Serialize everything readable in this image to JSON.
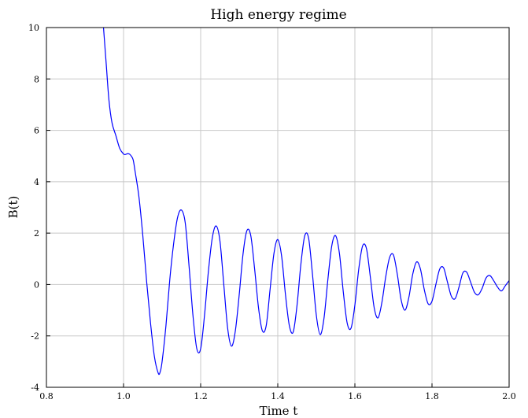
{
  "chart_data": {
    "type": "line",
    "title": "High energy regime",
    "xlabel": "Time t",
    "ylabel": "B(t)",
    "xlim": [
      0.8,
      2.0
    ],
    "ylim": [
      -4,
      10
    ],
    "xticks": [
      "0.8",
      "1.0",
      "1.2",
      "1.4",
      "1.6",
      "1.8",
      "2.0"
    ],
    "yticks": [
      "-4",
      "-2",
      "0",
      "2",
      "4",
      "6",
      "8",
      "10"
    ],
    "grid": true,
    "legend": "none",
    "series": [
      {
        "color": "#0000ff",
        "x": [
          0.948,
          0.955,
          0.962,
          0.97,
          0.98,
          0.99,
          1.0,
          1.005,
          1.01,
          1.015,
          1.02,
          1.025,
          1.03,
          1.04,
          1.05,
          1.06,
          1.07,
          1.08,
          1.09,
          1.095,
          1.1,
          1.11,
          1.12,
          1.13,
          1.14,
          1.15,
          1.16,
          1.17,
          1.18,
          1.19,
          1.2,
          1.21,
          1.22,
          1.23,
          1.24,
          1.25,
          1.26,
          1.27,
          1.28,
          1.29,
          1.3,
          1.31,
          1.32,
          1.33,
          1.34,
          1.35,
          1.36,
          1.37,
          1.38,
          1.39,
          1.4,
          1.41,
          1.42,
          1.43,
          1.44,
          1.45,
          1.46,
          1.47,
          1.48,
          1.49,
          1.5,
          1.51,
          1.52,
          1.53,
          1.54,
          1.55,
          1.56,
          1.57,
          1.58,
          1.59,
          1.6,
          1.61,
          1.62,
          1.63,
          1.64,
          1.65,
          1.66,
          1.67,
          1.68,
          1.69,
          1.7,
          1.71,
          1.72,
          1.73,
          1.74,
          1.75,
          1.76,
          1.77,
          1.78,
          1.79,
          1.8,
          1.81,
          1.82,
          1.83,
          1.84,
          1.85,
          1.86,
          1.87,
          1.88,
          1.89,
          1.9,
          1.91,
          1.92,
          1.93,
          1.94,
          1.95,
          1.96,
          1.97,
          1.98,
          1.99,
          2.0
        ],
        "y": [
          10.0,
          8.6,
          7.2,
          6.3,
          5.8,
          5.3,
          5.08,
          5.06,
          5.09,
          5.08,
          5.0,
          4.85,
          4.4,
          3.4,
          1.9,
          0.1,
          -1.5,
          -2.8,
          -3.45,
          -3.4,
          -3.0,
          -1.6,
          0.2,
          1.6,
          2.6,
          2.9,
          2.4,
          0.7,
          -1.2,
          -2.5,
          -2.5,
          -1.2,
          0.5,
          1.8,
          2.28,
          1.7,
          0.0,
          -1.7,
          -2.4,
          -1.8,
          -0.4,
          1.2,
          2.1,
          1.9,
          0.6,
          -0.9,
          -1.8,
          -1.6,
          -0.2,
          1.2,
          1.75,
          1.1,
          -0.4,
          -1.6,
          -1.85,
          -0.8,
          0.8,
          1.9,
          1.8,
          0.4,
          -1.2,
          -1.95,
          -1.3,
          0.2,
          1.5,
          1.9,
          1.2,
          -0.3,
          -1.5,
          -1.7,
          -0.8,
          0.6,
          1.5,
          1.4,
          0.3,
          -0.9,
          -1.3,
          -0.7,
          0.3,
          1.05,
          1.15,
          0.4,
          -0.6,
          -1.0,
          -0.5,
          0.4,
          0.88,
          0.6,
          -0.2,
          -0.75,
          -0.65,
          0.0,
          0.6,
          0.65,
          0.1,
          -0.45,
          -0.55,
          -0.1,
          0.45,
          0.48,
          0.1,
          -0.3,
          -0.4,
          -0.15,
          0.25,
          0.35,
          0.15,
          -0.1,
          -0.25,
          -0.05,
          0.15
        ]
      }
    ]
  }
}
